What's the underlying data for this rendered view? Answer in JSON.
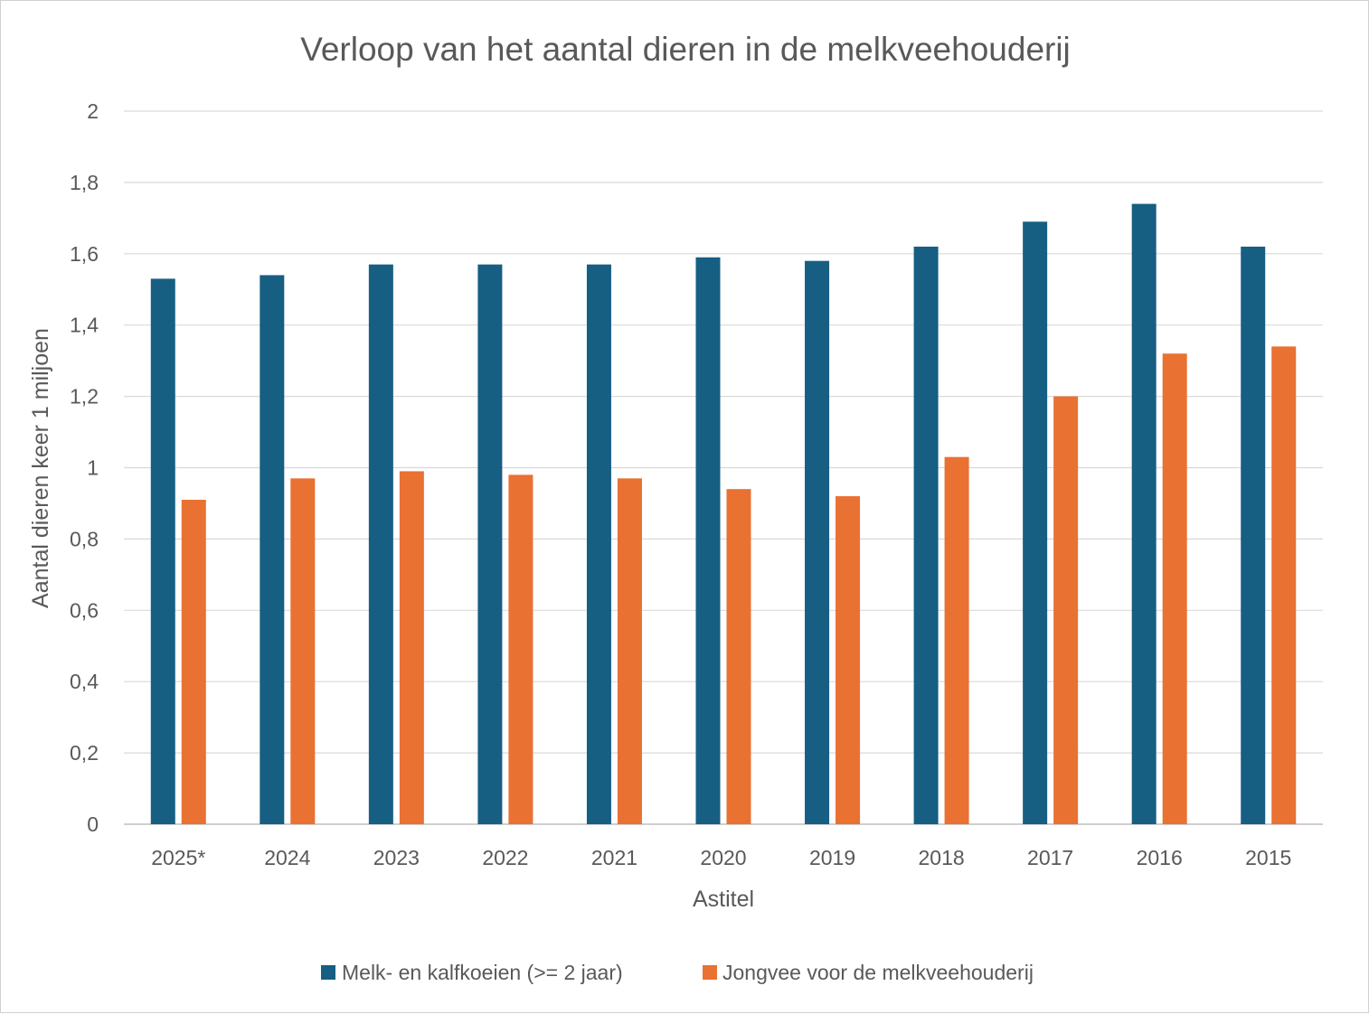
{
  "chart_data": {
    "type": "bar",
    "title": "Verloop van het aantal dieren in de melkveehouderij",
    "xlabel": "Astitel",
    "ylabel": "Aantal dieren keer 1 miljoen",
    "ylim": [
      0,
      2
    ],
    "y_ticks": [
      "0",
      "0,2",
      "0,4",
      "0,6",
      "0,8",
      "1",
      "1,2",
      "1,4",
      "1,6",
      "1,8",
      "2"
    ],
    "y_tick_values": [
      0,
      0.2,
      0.4,
      0.6,
      0.8,
      1.0,
      1.2,
      1.4,
      1.6,
      1.8,
      2.0
    ],
    "grid": true,
    "legend_position": "bottom",
    "categories": [
      "2025*",
      "2024",
      "2023",
      "2022",
      "2021",
      "2020",
      "2019",
      "2018",
      "2017",
      "2016",
      "2015"
    ],
    "series": [
      {
        "name": "Melk- en kalfkoeien (>= 2 jaar)",
        "color": "#175E83",
        "values": [
          1.53,
          1.54,
          1.57,
          1.57,
          1.57,
          1.59,
          1.58,
          1.62,
          1.69,
          1.74,
          1.62
        ]
      },
      {
        "name": "Jongvee voor de melkveehouderij",
        "color": "#E97132",
        "values": [
          0.91,
          0.97,
          0.99,
          0.98,
          0.97,
          0.94,
          0.92,
          1.03,
          1.2,
          1.32,
          1.34
        ]
      }
    ]
  }
}
